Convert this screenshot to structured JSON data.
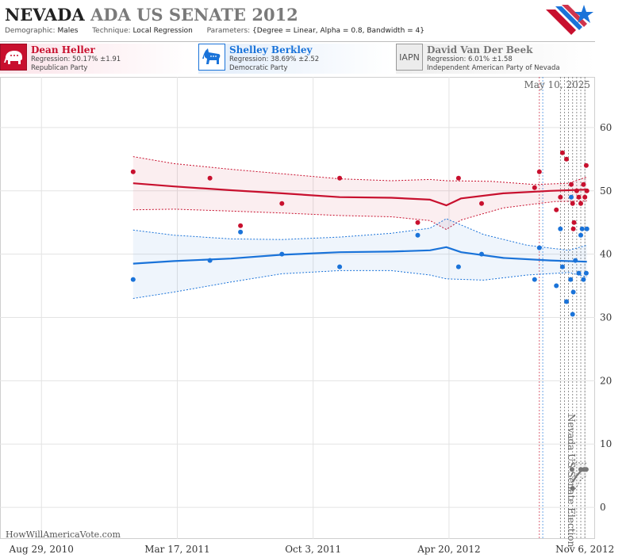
{
  "header": {
    "title_state": "NEVADA",
    "title_rest": "ADA US SENATE 2012",
    "demographic_label": "Demographic:",
    "demographic_value": "Males",
    "technique_label": "Technique:",
    "technique_value": "Local Regression",
    "parameters_label": "Parameters:",
    "parameters_value": "{Degree = Linear, Alpha = 0.8, Bandwidth = 4}"
  },
  "candidates": [
    {
      "name": "Dean Heller",
      "regression": "Regression: 50.17% ±1.91",
      "party": "Republican Party",
      "color": "#c8102e",
      "icon": "elephant-icon"
    },
    {
      "name": "Shelley Berkley",
      "regression": "Regression: 38.69% ±2.52",
      "party": "Democratic Party",
      "color": "#1a73d9",
      "icon": "donkey-icon"
    },
    {
      "name": "David Van Der Beek",
      "regression": "Regression: 6.01% ±1.58",
      "party": "Independent American Party  of Nevada",
      "color": "#777777",
      "icon": "iapn-text-icon",
      "badge_text": "IAPN"
    }
  ],
  "chart_data": {
    "type": "scatter",
    "date_label": "May 10, 2025",
    "election_label": "Nevada US Senate Election",
    "credit": "HowWillAmericaVote.com",
    "x_ticks": [
      {
        "date": "2010-08-29",
        "label": "Aug 29, 2010"
      },
      {
        "date": "2011-03-17",
        "label": "Mar 17, 2011"
      },
      {
        "date": "2011-10-03",
        "label": "Oct 3, 2011"
      },
      {
        "date": "2012-04-20",
        "label": "Apr 20, 2012"
      },
      {
        "date": "2012-11-06",
        "label": "Nov 6, 2012"
      }
    ],
    "xlim": [
      "2010-06-29",
      "2012-11-21"
    ],
    "ylim": [
      -5,
      68
    ],
    "y_ticks": [
      0,
      10,
      20,
      30,
      40,
      50,
      60
    ],
    "grid": true,
    "vertical_markers": [
      {
        "date": "2012-08-31",
        "color": "#c8102e"
      },
      {
        "date": "2012-09-05",
        "color": "#1a73d9"
      },
      {
        "date": "2012-10-01",
        "color": "#555555"
      },
      {
        "date": "2012-10-07",
        "color": "#555555"
      },
      {
        "date": "2012-10-13",
        "color": "#555555"
      },
      {
        "date": "2012-10-19",
        "color": "#555555"
      },
      {
        "date": "2012-10-25",
        "color": "#555555"
      },
      {
        "date": "2012-10-31",
        "color": "#555555"
      },
      {
        "date": "2012-11-06",
        "color": "#555555"
      }
    ],
    "series": [
      {
        "name": "Dean Heller",
        "color": "#c8102e",
        "fill": "#c8102e",
        "points": [
          [
            "2011-01-11",
            53
          ],
          [
            "2011-05-04",
            52
          ],
          [
            "2011-06-18",
            44.5
          ],
          [
            "2011-08-18",
            48
          ],
          [
            "2011-11-11",
            52
          ],
          [
            "2012-03-05",
            45
          ],
          [
            "2012-05-04",
            52
          ],
          [
            "2012-06-07",
            48
          ],
          [
            "2012-08-24",
            50.5
          ],
          [
            "2012-08-31",
            53
          ],
          [
            "2012-09-25",
            47
          ],
          [
            "2012-10-01",
            49
          ],
          [
            "2012-10-04",
            56
          ],
          [
            "2012-10-10",
            55
          ],
          [
            "2012-10-17",
            51
          ],
          [
            "2012-10-19",
            48
          ],
          [
            "2012-10-20",
            44
          ],
          [
            "2012-10-21",
            45
          ],
          [
            "2012-10-25",
            50
          ],
          [
            "2012-10-28",
            49
          ],
          [
            "2012-10-31",
            48
          ],
          [
            "2012-11-04",
            51
          ],
          [
            "2012-11-06",
            49
          ],
          [
            "2012-11-08",
            54
          ],
          [
            "2012-11-09",
            50
          ]
        ],
        "trend": [
          [
            "2011-01-11",
            51.2
          ],
          [
            "2011-03-12",
            50.7
          ],
          [
            "2011-06-04",
            50.1
          ],
          [
            "2011-08-18",
            49.6
          ],
          [
            "2011-11-11",
            49.0
          ],
          [
            "2012-01-26",
            48.9
          ],
          [
            "2012-03-23",
            48.6
          ],
          [
            "2012-04-16",
            47.7
          ],
          [
            "2012-05-08",
            48.8
          ],
          [
            "2012-07-09",
            49.6
          ],
          [
            "2012-09-16",
            50.0
          ],
          [
            "2012-11-09",
            50.2
          ]
        ],
        "upper": [
          [
            "2011-01-11",
            55.4
          ],
          [
            "2011-03-12",
            54.3
          ],
          [
            "2011-06-04",
            53.4
          ],
          [
            "2011-08-18",
            52.7
          ],
          [
            "2011-11-11",
            51.9
          ],
          [
            "2012-01-26",
            51.6
          ],
          [
            "2012-03-23",
            51.8
          ],
          [
            "2012-04-16",
            51.6
          ],
          [
            "2012-06-21",
            51.5
          ],
          [
            "2012-08-24",
            51.0
          ],
          [
            "2012-10-13",
            51.2
          ],
          [
            "2012-11-09",
            52.2
          ]
        ],
        "lower": [
          [
            "2011-01-11",
            47.0
          ],
          [
            "2011-03-12",
            47.1
          ],
          [
            "2011-06-04",
            46.8
          ],
          [
            "2011-08-18",
            46.5
          ],
          [
            "2011-11-11",
            46.1
          ],
          [
            "2012-01-26",
            45.9
          ],
          [
            "2012-03-23",
            45.3
          ],
          [
            "2012-04-16",
            43.9
          ],
          [
            "2012-05-08",
            45.4
          ],
          [
            "2012-07-09",
            47.3
          ],
          [
            "2012-09-22",
            48.3
          ],
          [
            "2012-11-09",
            48.4
          ]
        ]
      },
      {
        "name": "Shelley Berkley",
        "color": "#1a73d9",
        "fill": "#1a73d9",
        "points": [
          [
            "2011-01-11",
            36
          ],
          [
            "2011-05-04",
            39
          ],
          [
            "2011-06-18",
            43.5
          ],
          [
            "2011-08-18",
            40
          ],
          [
            "2011-11-11",
            38
          ],
          [
            "2012-03-05",
            43
          ],
          [
            "2012-05-04",
            38
          ],
          [
            "2012-06-07",
            40
          ],
          [
            "2012-08-24",
            36
          ],
          [
            "2012-08-31",
            41
          ],
          [
            "2012-09-25",
            35
          ],
          [
            "2012-10-01",
            44
          ],
          [
            "2012-10-04",
            38
          ],
          [
            "2012-10-10",
            32.5
          ],
          [
            "2012-10-16",
            36
          ],
          [
            "2012-10-17",
            49
          ],
          [
            "2012-10-19",
            30.5
          ],
          [
            "2012-10-20",
            34
          ],
          [
            "2012-10-23",
            39
          ],
          [
            "2012-10-28",
            37
          ],
          [
            "2012-10-31",
            43
          ],
          [
            "2012-11-02",
            44
          ],
          [
            "2012-11-04",
            36
          ],
          [
            "2012-11-08",
            37
          ],
          [
            "2012-11-09",
            44
          ]
        ],
        "trend": [
          [
            "2011-01-11",
            38.5
          ],
          [
            "2011-03-12",
            38.9
          ],
          [
            "2011-06-04",
            39.3
          ],
          [
            "2011-08-18",
            39.9
          ],
          [
            "2011-11-11",
            40.3
          ],
          [
            "2012-01-26",
            40.4
          ],
          [
            "2012-03-23",
            40.6
          ],
          [
            "2012-04-16",
            41.1
          ],
          [
            "2012-05-08",
            40.3
          ],
          [
            "2012-07-09",
            39.4
          ],
          [
            "2012-09-16",
            39.0
          ],
          [
            "2012-11-09",
            38.8
          ]
        ],
        "upper": [
          [
            "2011-01-11",
            43.8
          ],
          [
            "2011-03-12",
            43.0
          ],
          [
            "2011-06-04",
            42.4
          ],
          [
            "2011-08-18",
            42.3
          ],
          [
            "2011-11-11",
            42.7
          ],
          [
            "2012-01-26",
            43.3
          ],
          [
            "2012-03-23",
            44.1
          ],
          [
            "2012-04-16",
            45.6
          ],
          [
            "2012-06-10",
            43.1
          ],
          [
            "2012-08-13",
            41.4
          ],
          [
            "2012-10-13",
            40.6
          ],
          [
            "2012-11-09",
            41.4
          ]
        ],
        "lower": [
          [
            "2011-01-11",
            33.0
          ],
          [
            "2011-03-12",
            34.0
          ],
          [
            "2011-06-04",
            35.6
          ],
          [
            "2011-08-18",
            36.9
          ],
          [
            "2011-11-11",
            37.4
          ],
          [
            "2012-01-26",
            37.4
          ],
          [
            "2012-03-23",
            36.7
          ],
          [
            "2012-04-16",
            36.1
          ],
          [
            "2012-06-10",
            35.9
          ],
          [
            "2012-08-13",
            36.7
          ],
          [
            "2012-10-13",
            37.1
          ],
          [
            "2012-11-09",
            36.4
          ]
        ]
      },
      {
        "name": "David Van Der Beek",
        "color": "#777777",
        "fill": "#777777",
        "points": [
          [
            "2012-10-18",
            6
          ],
          [
            "2012-10-19",
            3
          ],
          [
            "2012-10-31",
            6
          ],
          [
            "2012-11-05",
            6
          ],
          [
            "2012-11-08",
            6
          ]
        ],
        "trend": [
          [
            "2012-10-19",
            4
          ],
          [
            "2012-10-25",
            5
          ],
          [
            "2012-10-31",
            5.7
          ],
          [
            "2012-11-09",
            6
          ]
        ],
        "upper": [
          [
            "2012-10-19",
            6.8
          ],
          [
            "2012-10-25",
            7.1
          ],
          [
            "2012-10-31",
            7.0
          ],
          [
            "2012-11-09",
            7.0
          ]
        ],
        "lower": [
          [
            "2012-10-19",
            2.5
          ],
          [
            "2012-10-25",
            3.2
          ],
          [
            "2012-10-31",
            4.4
          ],
          [
            "2012-11-09",
            5.0
          ]
        ]
      }
    ]
  }
}
